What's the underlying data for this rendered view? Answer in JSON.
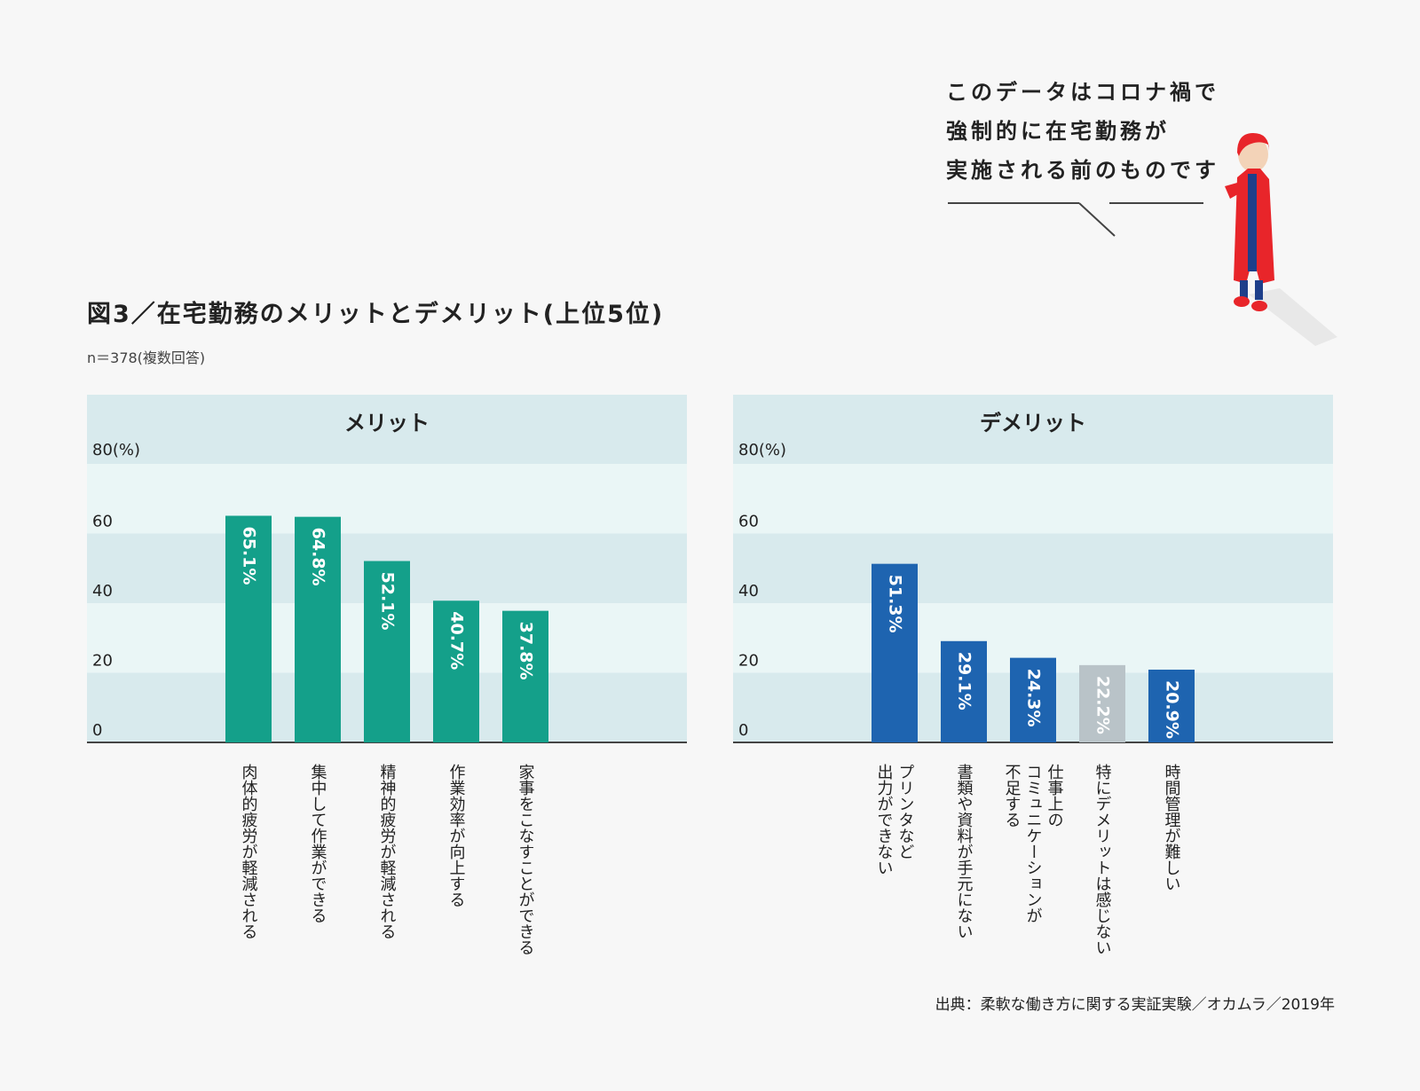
{
  "figure": {
    "title": "図3／在宅勤務のメリットとデメリット(上位5位)",
    "sample": "n＝378(複数回答)"
  },
  "speech_bubble": {
    "lines": [
      "このデータはコロナ禍で",
      "強制的に在宅勤務が",
      "実施される前のものです"
    ]
  },
  "source": "出典：柔軟な働き方に関する実証実験／オカムラ／2019年",
  "colors": {
    "merit_bar": "#14a08a",
    "demerit_bar": "#1e64b0",
    "neutral_bar": "#b9c3c8",
    "band_dark": "#d8eaed",
    "band_light": "#eaf6f6",
    "figure_red": "#e8252a"
  },
  "chart_data": [
    {
      "type": "bar",
      "title": "メリット",
      "ylabel_top": "80(%)",
      "yticks": [
        "0",
        "20",
        "40",
        "60"
      ],
      "ylim": [
        0,
        80
      ],
      "categories": [
        "肉体的疲労が軽減される",
        "集中して作業ができる",
        "精神的疲労が軽減される",
        "作業効率が向上する",
        "家事をこなすことができる"
      ],
      "category_lines": [
        [
          "肉体的疲労が軽減される"
        ],
        [
          "集中して作業ができる"
        ],
        [
          "精神的疲労が軽減される"
        ],
        [
          "作業効率が向上する"
        ],
        [
          "家事をこなすことができる"
        ]
      ],
      "values": [
        65.1,
        64.8,
        52.1,
        40.7,
        37.8
      ],
      "value_labels": [
        "65.1%",
        "64.8%",
        "52.1%",
        "40.7%",
        "37.8%"
      ],
      "bar_colors": [
        "#14a08a",
        "#14a08a",
        "#14a08a",
        "#14a08a",
        "#14a08a"
      ]
    },
    {
      "type": "bar",
      "title": "デメリット",
      "ylabel_top": "80(%)",
      "yticks": [
        "0",
        "20",
        "40",
        "60"
      ],
      "ylim": [
        0,
        80
      ],
      "categories": [
        "プリンタなど出力ができない",
        "書類や資料が手元にない",
        "仕事上のコミュニケーションが不足する",
        "特にデメリットは感じない",
        "時間管理が難しい"
      ],
      "category_lines": [
        [
          "プリンタなど",
          "出力ができない"
        ],
        [
          "書類や資料が手元にない"
        ],
        [
          "仕事上の",
          "コミュニケーションが",
          "不足する"
        ],
        [
          "特にデメリットは感じない"
        ],
        [
          "時間管理が難しい"
        ]
      ],
      "values": [
        51.3,
        29.1,
        24.3,
        22.2,
        20.9
      ],
      "value_labels": [
        "51.3%",
        "29.1%",
        "24.3%",
        "22.2%",
        "20.9%"
      ],
      "bar_colors": [
        "#1e64b0",
        "#1e64b0",
        "#1e64b0",
        "#b9c3c8",
        "#1e64b0"
      ]
    }
  ]
}
